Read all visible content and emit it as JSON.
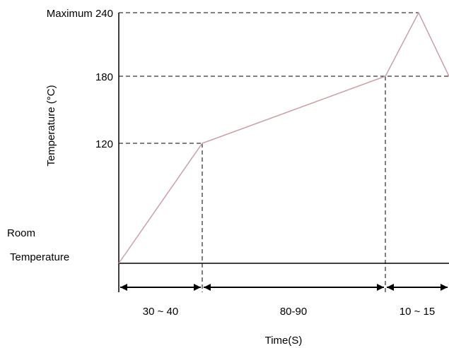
{
  "chart_data": {
    "type": "line",
    "ylabel": "Temperature (°C)",
    "xlabel": "Time(S)",
    "y_tick_labels": {
      "max": "Maximum 240",
      "t180": "180",
      "t120": "120",
      "room_line1": "Room",
      "room_line2": "Temperature"
    },
    "interval_labels": [
      "30 ~ 40",
      "80-90",
      "10 ~ 15"
    ],
    "phases": [
      {
        "label": "30 ~ 40",
        "duration_s": 35
      },
      {
        "label": "80-90",
        "duration_s": 85
      },
      {
        "label": "10 ~ 15",
        "duration_s": 12.5
      }
    ],
    "profile_points": [
      {
        "t": 0,
        "temp": 25
      },
      {
        "t": 35,
        "temp": 120
      },
      {
        "t": 120,
        "temp": 180
      },
      {
        "t": 135,
        "temp": 240
      },
      {
        "t": 150,
        "temp": 180
      }
    ],
    "axis_ranges": {
      "x": [
        0,
        150
      ],
      "y": [
        25,
        240
      ]
    },
    "colors": {
      "curve": "#c8a0a8",
      "axes": "#000000",
      "guides": "#000000"
    }
  }
}
